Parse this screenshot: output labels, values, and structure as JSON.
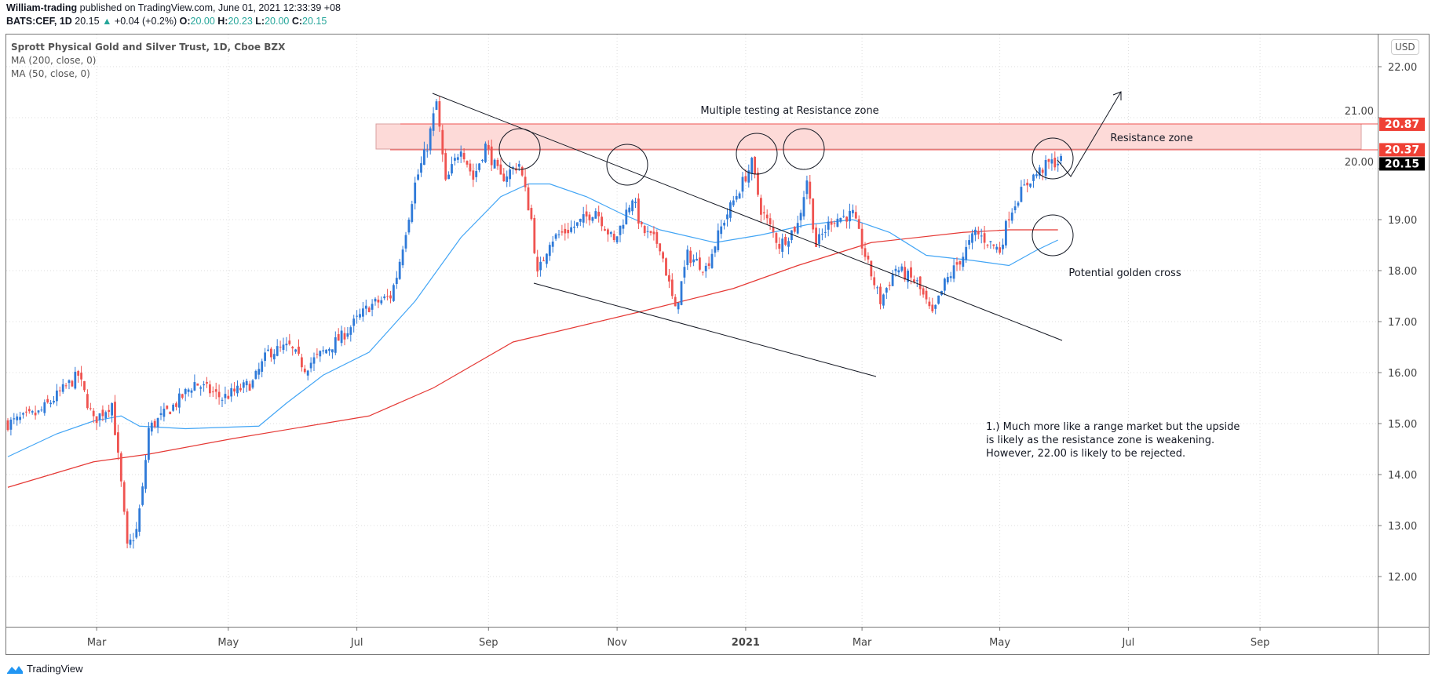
{
  "header": {
    "author": "William-trading",
    "published": "published on TradingView.com, June 01, 2021 12:33:39 +08",
    "symbol": "BATS:CEF, 1D",
    "last": "20.15",
    "change": "+0.04 (+0.2%)",
    "o_label": "O:",
    "o": "20.00",
    "h_label": "H:",
    "h": "20.23",
    "l_label": "L:",
    "l": "20.00",
    "c_label": "C:",
    "c": "20.15"
  },
  "legend": {
    "title": "Sprott Physical Gold and Silver Trust, 1D, Cboe BZX",
    "ma200": "MA (200, close, 0)",
    "ma50": "MA (50, close, 0)"
  },
  "currency": "USD",
  "footer": {
    "brand": "TradingView"
  },
  "colors": {
    "up": "#2f7ad8",
    "down": "#ef5350",
    "ma200": "#e53935",
    "ma50": "#42a5f5",
    "zone_fill": "#fddad8",
    "zone_line": "#ef5350"
  },
  "annotations": {
    "resistance_title": "Multiple testing at Resistance zone",
    "resistance_zone": "Resistance zone",
    "golden_cross": "Potential golden cross",
    "note": [
      "1.) Much more like a range market but the upside",
      "is likely as the resistance zone is weakening.",
      "However, 22.00 is likely to be rejected."
    ]
  },
  "chart_data": {
    "type": "candlestick",
    "title": "Sprott Physical Gold and Silver Trust, 1D, Cboe BZX",
    "ylim": [
      11,
      22.3
    ],
    "y_ticks": [
      "12.00",
      "13.00",
      "14.00",
      "15.00",
      "16.00",
      "17.00",
      "18.00",
      "19.00",
      "20.00",
      "21.00",
      "22.00"
    ],
    "x_ticks": [
      {
        "label": "Mar",
        "bar": 29
      },
      {
        "label": "May",
        "bar": 72
      },
      {
        "label": "Jul",
        "bar": 114
      },
      {
        "label": "Sep",
        "bar": 157
      },
      {
        "label": "Nov",
        "bar": 199
      },
      {
        "label": "2021",
        "bar": 241
      },
      {
        "label": "Mar",
        "bar": 279
      },
      {
        "label": "May",
        "bar": 324
      },
      {
        "label": "Jul",
        "bar": 366
      },
      {
        "label": "Sep",
        "bar": 409
      }
    ],
    "price_tags": [
      {
        "value": "20.87",
        "color": "#ef4136"
      },
      {
        "value": "20.37",
        "color": "#ef4136"
      },
      {
        "value": "20.15",
        "color": "#000000"
      }
    ],
    "close_path": [
      [
        0,
        15.0
      ],
      [
        10,
        15.2
      ],
      [
        23,
        15.95
      ],
      [
        28,
        15.05
      ],
      [
        34,
        15.4
      ],
      [
        37,
        13.8
      ],
      [
        39,
        12.55
      ],
      [
        42,
        12.9
      ],
      [
        44,
        13.7
      ],
      [
        46,
        14.9
      ],
      [
        55,
        15.4
      ],
      [
        61,
        15.8
      ],
      [
        70,
        15.5
      ],
      [
        80,
        15.8
      ],
      [
        85,
        16.4
      ],
      [
        92,
        16.5
      ],
      [
        97,
        16.1
      ],
      [
        109,
        16.7
      ],
      [
        118,
        17.3
      ],
      [
        125,
        17.5
      ],
      [
        127,
        17.9
      ],
      [
        130,
        18.8
      ],
      [
        133,
        19.7
      ],
      [
        137,
        20.45
      ],
      [
        140,
        21.3
      ],
      [
        143,
        19.7
      ],
      [
        148,
        20.45
      ],
      [
        152,
        19.8
      ],
      [
        156,
        20.45
      ],
      [
        161,
        19.8
      ],
      [
        167,
        20.1
      ],
      [
        171,
        19.0
      ],
      [
        173,
        17.9
      ],
      [
        177,
        18.6
      ],
      [
        186,
        18.9
      ],
      [
        192,
        19.2
      ],
      [
        198,
        18.55
      ],
      [
        204,
        19.45
      ],
      [
        207,
        18.8
      ],
      [
        213,
        18.5
      ],
      [
        218,
        17.2
      ],
      [
        222,
        18.3
      ],
      [
        228,
        18.05
      ],
      [
        234,
        19.0
      ],
      [
        243,
        20.1
      ],
      [
        246,
        19.2
      ],
      [
        252,
        18.5
      ],
      [
        258,
        18.9
      ],
      [
        261,
        19.8
      ],
      [
        264,
        18.5
      ],
      [
        269,
        19.0
      ],
      [
        276,
        19.1
      ],
      [
        281,
        18.1
      ],
      [
        285,
        17.4
      ],
      [
        290,
        18.05
      ],
      [
        297,
        17.75
      ],
      [
        302,
        17.1
      ],
      [
        306,
        17.75
      ],
      [
        312,
        18.3
      ],
      [
        316,
        18.75
      ],
      [
        324,
        18.4
      ],
      [
        327,
        19.1
      ],
      [
        330,
        19.45
      ],
      [
        334,
        19.8
      ],
      [
        340,
        20.1
      ],
      [
        344,
        20.15
      ]
    ],
    "ma200_path": [
      [
        0,
        13.75
      ],
      [
        28,
        14.25
      ],
      [
        46,
        14.4
      ],
      [
        73,
        14.7
      ],
      [
        118,
        15.15
      ],
      [
        139,
        15.7
      ],
      [
        165,
        16.6
      ],
      [
        207,
        17.2
      ],
      [
        237,
        17.65
      ],
      [
        258,
        18.1
      ],
      [
        282,
        18.55
      ],
      [
        312,
        18.75
      ],
      [
        327,
        18.8
      ],
      [
        343,
        18.8
      ]
    ],
    "ma50_path": [
      [
        0,
        14.35
      ],
      [
        16,
        14.8
      ],
      [
        28,
        15.05
      ],
      [
        37,
        15.15
      ],
      [
        43,
        14.95
      ],
      [
        58,
        14.9
      ],
      [
        82,
        14.95
      ],
      [
        91,
        15.4
      ],
      [
        103,
        15.95
      ],
      [
        118,
        16.4
      ],
      [
        133,
        17.4
      ],
      [
        148,
        18.65
      ],
      [
        161,
        19.45
      ],
      [
        170,
        19.7
      ],
      [
        177,
        19.7
      ],
      [
        189,
        19.45
      ],
      [
        201,
        19.1
      ],
      [
        213,
        18.8
      ],
      [
        231,
        18.55
      ],
      [
        246,
        18.7
      ],
      [
        261,
        18.9
      ],
      [
        276,
        19.0
      ],
      [
        288,
        18.75
      ],
      [
        300,
        18.3
      ],
      [
        315,
        18.2
      ],
      [
        327,
        18.1
      ],
      [
        336,
        18.4
      ],
      [
        343,
        18.6
      ]
    ],
    "resistance_zone": [
      20.37,
      20.87
    ]
  }
}
